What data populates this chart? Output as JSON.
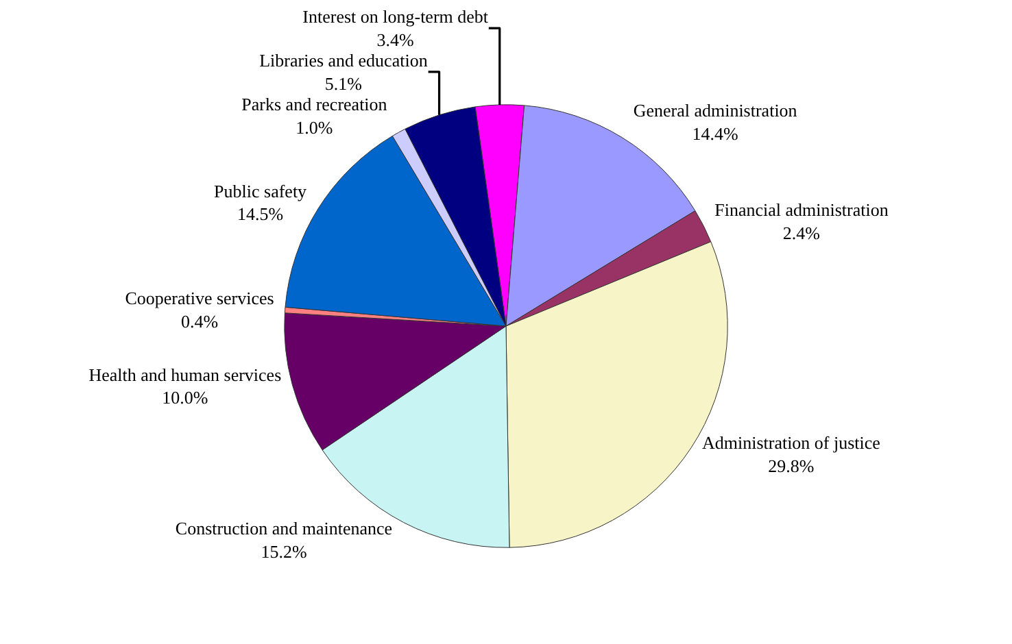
{
  "chart_data": {
    "type": "pie",
    "categories": [
      "Interest on long-term debt",
      "General administration",
      "Financial administration",
      "Administration of justice",
      "Construction and maintenance",
      "Health and human services",
      "Cooperative services",
      "Public safety",
      "Parks and recreation",
      "Libraries and education"
    ],
    "values": [
      3.4,
      14.4,
      2.4,
      29.8,
      15.2,
      10.0,
      0.4,
      14.5,
      1.0,
      5.1
    ],
    "value_labels": [
      "3.4%",
      "14.4%",
      "2.4%",
      "29.8%",
      "15.2%",
      "10.0%",
      "0.4%",
      "14.5%",
      "1.0%",
      "5.1%"
    ],
    "colors": [
      "#ff00ff",
      "#9999ff",
      "#993366",
      "#f7f4c8",
      "#c8f4f4",
      "#660066",
      "#ff8080",
      "#0066cc",
      "#ccccff",
      "#000080"
    ],
    "legend": false
  }
}
